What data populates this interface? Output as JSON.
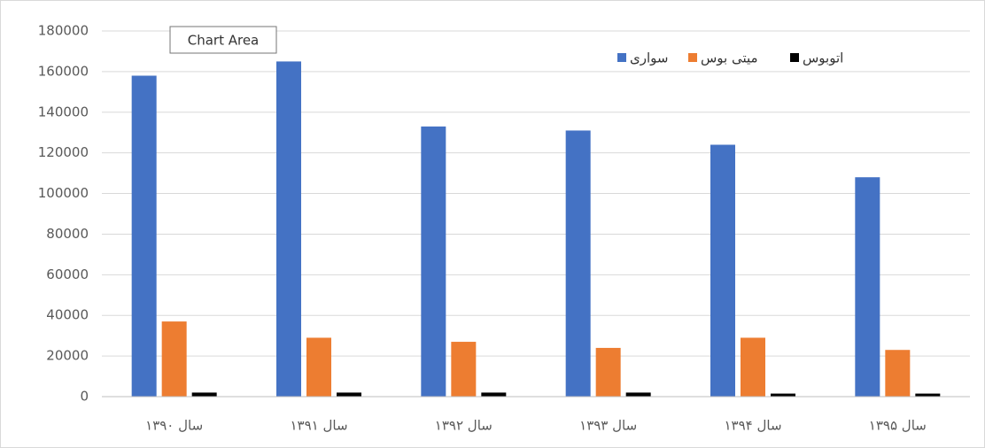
{
  "chart_data": {
    "type": "bar",
    "tooltip": "Chart Area",
    "categories": [
      "سال ۱۳۹۰",
      "سال ۱۳۹۱",
      "سال ۱۳۹۲",
      "سال ۱۳۹۳",
      "سال ۱۳۹۴",
      "سال ۱۳۹۵"
    ],
    "series": [
      {
        "name": "سواری",
        "color": "#4472c4",
        "values": [
          158000,
          165000,
          133000,
          131000,
          124000,
          108000
        ]
      },
      {
        "name": "میتی بوس",
        "color": "#ed7d31",
        "values": [
          37000,
          29000,
          27000,
          24000,
          29000,
          23000
        ]
      },
      {
        "name": "اتوبوس",
        "color": "#000000",
        "values": [
          2000,
          2000,
          2000,
          2000,
          1500,
          1500
        ]
      }
    ],
    "ylim": [
      0,
      180000
    ],
    "yticks": [
      0,
      20000,
      40000,
      60000,
      80000,
      100000,
      120000,
      140000,
      160000,
      180000
    ],
    "grid": true
  }
}
